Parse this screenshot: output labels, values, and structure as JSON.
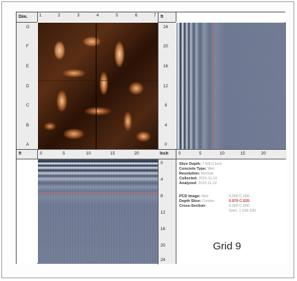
{
  "corner_labels": {
    "dim": "Dim.",
    "ft_top": "ft",
    "ft_bottom": "ft",
    "inch": "Inch"
  },
  "top_ruler_ticks": [
    "1",
    "2",
    "3",
    "4",
    "5",
    "6",
    "7"
  ],
  "left_ruler_ticks": [
    "G",
    "F",
    "E",
    "D",
    "C",
    "B",
    "A"
  ],
  "right_top_depth_ticks": [
    "24",
    "20",
    "16",
    "12",
    "8",
    "4",
    "0"
  ],
  "right_top_x_ticks": [
    "0",
    "5",
    "10",
    "15",
    "20"
  ],
  "middle_x_ticks": [
    "0",
    "5",
    "10",
    "15",
    "20"
  ],
  "right_bottom_depth_ticks": [
    "0",
    "4",
    "8",
    "12",
    "16",
    "20",
    "24"
  ],
  "info": {
    "slice_depth_label": "Slice Depth:",
    "slice_depth_value": "7.6/8.0 Inch",
    "concrete_type_label": "Concrete Type:",
    "concrete_type_value": "Wet",
    "resolution_label": "Resolution:",
    "resolution_value": "Normal",
    "collected_label": "Collected:",
    "collected_value": "2015.11.10",
    "analyzed_label": "Analyzed:",
    "analyzed_value": "2015.11.12",
    "pcd_image_label": "PCD Image:",
    "pcd_image_mode": "Wet",
    "pcd_image_value": "0.000 C.000",
    "depth_slice_label": "Depth Slice:",
    "depth_slice_mode": "Combo",
    "depth_slice_value": "0.970 C.025",
    "cross_section_label": "Cross-Section:",
    "cross_section_value": "0.000 C.000",
    "gain_value": "Gain: 1.106.100"
  },
  "grid_title": "Grid 9",
  "colors": {
    "depth_line": "#c8646e",
    "highlight_red": "#d03030"
  }
}
